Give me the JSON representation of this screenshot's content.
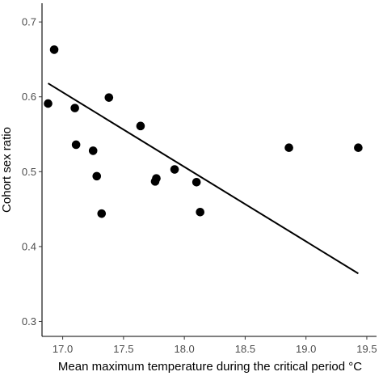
{
  "chart_data": {
    "type": "scatter",
    "title": "",
    "xlabel": "Mean maximum temperature during the critical period °C",
    "ylabel": "Cohort sex ratio",
    "xlim": [
      16.83,
      19.58
    ],
    "ylim": [
      0.28,
      0.725
    ],
    "x_ticks": [
      17.0,
      17.5,
      18.0,
      18.5,
      19.0,
      19.5
    ],
    "x_tick_labels": [
      "17.0",
      "17.5",
      "18.0",
      "18.5",
      "19.0",
      "19.5"
    ],
    "y_ticks": [
      0.3,
      0.4,
      0.5,
      0.6,
      0.7
    ],
    "y_tick_labels": [
      "0.3",
      "0.4",
      "0.5",
      "0.6",
      "0.7"
    ],
    "grid": false,
    "legend": "none",
    "point_color": "#000000",
    "line_color": "#000000",
    "points": [
      {
        "x": 16.88,
        "y": 0.591
      },
      {
        "x": 16.93,
        "y": 0.663
      },
      {
        "x": 17.1,
        "y": 0.585
      },
      {
        "x": 17.11,
        "y": 0.536
      },
      {
        "x": 17.25,
        "y": 0.528
      },
      {
        "x": 17.28,
        "y": 0.494
      },
      {
        "x": 17.32,
        "y": 0.444
      },
      {
        "x": 17.38,
        "y": 0.599
      },
      {
        "x": 17.64,
        "y": 0.561
      },
      {
        "x": 17.76,
        "y": 0.487
      },
      {
        "x": 17.77,
        "y": 0.491
      },
      {
        "x": 17.92,
        "y": 0.503
      },
      {
        "x": 18.1,
        "y": 0.486
      },
      {
        "x": 18.13,
        "y": 0.446
      },
      {
        "x": 18.86,
        "y": 0.532
      },
      {
        "x": 19.43,
        "y": 0.532
      }
    ],
    "fit_line": {
      "x": [
        16.88,
        19.43
      ],
      "y": [
        0.618,
        0.364
      ]
    }
  }
}
